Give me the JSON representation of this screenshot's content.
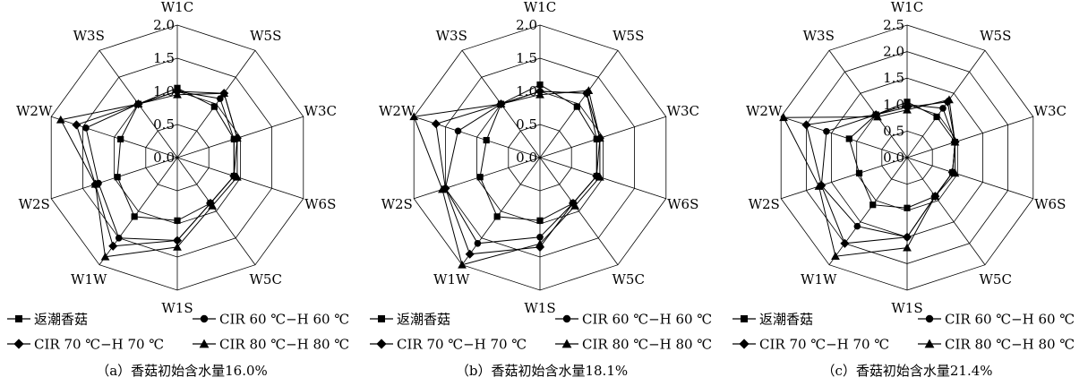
{
  "figure": {
    "axes": [
      "W1C",
      "W5S",
      "W3C",
      "W6S",
      "W5C",
      "W1S",
      "W1W",
      "W2S",
      "W2W",
      "W3S"
    ],
    "legend_labels": [
      "返潮香菇",
      "CIR 60 ℃−H 60 ℃",
      "CIR 70 ℃−H 70 ℃",
      "CIR 80 ℃−H 80 ℃"
    ],
    "marker_shapes": [
      "square",
      "circle",
      "diamond",
      "triangle"
    ],
    "line_color": "#000000"
  },
  "chart_data": [
    {
      "type": "radar",
      "caption": "（a）香菇初始含水量16.0%",
      "rmax": 2.0,
      "ticks": [
        "0.0",
        "0.5",
        "1.0",
        "1.5",
        "2.0"
      ],
      "categories": [
        "W1C",
        "W5S",
        "W3C",
        "W6S",
        "W5C",
        "W1S",
        "W1W",
        "W2S",
        "W2W",
        "W3S"
      ],
      "series": [
        {
          "name": "返潮香菇",
          "values": [
            1.05,
            0.95,
            0.9,
            0.9,
            0.85,
            0.95,
            1.1,
            0.95,
            0.9,
            1.0
          ]
        },
        {
          "name": "CIR 60 ℃−H 60 ℃",
          "values": [
            1.0,
            1.1,
            0.9,
            0.9,
            0.85,
            1.25,
            1.5,
            1.25,
            1.45,
            1.0
          ]
        },
        {
          "name": "CIR 70 ℃−H 70 ℃",
          "values": [
            1.0,
            1.2,
            0.95,
            0.9,
            0.85,
            1.25,
            1.65,
            1.3,
            1.6,
            1.0
          ]
        },
        {
          "name": "CIR 80 ℃−H 80 ℃",
          "values": [
            0.95,
            1.2,
            0.95,
            0.95,
            0.9,
            1.35,
            1.85,
            1.3,
            1.85,
            1.0
          ]
        }
      ]
    },
    {
      "type": "radar",
      "caption": "（b）香菇初始含水量18.1%",
      "rmax": 2.0,
      "ticks": [
        "0.0",
        "0.5",
        "1.0",
        "1.5",
        "2.0"
      ],
      "categories": [
        "W1C",
        "W5S",
        "W3C",
        "W6S",
        "W5C",
        "W1S",
        "W1W",
        "W2S",
        "W2W",
        "W3S"
      ],
      "series": [
        {
          "name": "返潮香菇",
          "values": [
            1.1,
            0.95,
            0.9,
            0.9,
            0.85,
            0.95,
            1.1,
            0.95,
            0.85,
            1.0
          ]
        },
        {
          "name": "CIR 60 ℃−H 60 ℃",
          "values": [
            1.0,
            1.2,
            0.9,
            0.9,
            0.85,
            1.2,
            1.6,
            1.5,
            1.3,
            1.0
          ]
        },
        {
          "name": "CIR 70 ℃−H 70 ℃",
          "values": [
            1.0,
            1.2,
            0.95,
            0.9,
            0.85,
            1.35,
            1.8,
            1.5,
            1.65,
            1.0
          ]
        },
        {
          "name": "CIR 80 ℃−H 80 ℃",
          "values": [
            0.95,
            1.25,
            0.95,
            0.95,
            0.9,
            1.3,
            2.0,
            1.55,
            2.0,
            1.0
          ]
        }
      ]
    },
    {
      "type": "radar",
      "caption": "（c）香菇初始含水量21.4%",
      "rmax": 2.5,
      "ticks": [
        "0.0",
        "0.5",
        "1.0",
        "1.5",
        "2.0",
        "2.5"
      ],
      "categories": [
        "W1C",
        "W5S",
        "W3C",
        "W6S",
        "W5C",
        "W1S",
        "W1W",
        "W2S",
        "W2W",
        "W3S"
      ],
      "series": [
        {
          "name": "返潮香菇",
          "values": [
            1.05,
            0.95,
            0.95,
            0.9,
            0.9,
            0.95,
            1.1,
            0.95,
            1.15,
            1.0
          ]
        },
        {
          "name": "CIR 60 ℃−H 60 ℃",
          "values": [
            1.0,
            1.15,
            0.95,
            0.9,
            0.9,
            1.5,
            1.6,
            1.7,
            1.6,
            1.0
          ]
        },
        {
          "name": "CIR 70 ℃−H 70 ℃",
          "values": [
            0.95,
            1.3,
            0.95,
            0.9,
            0.9,
            1.5,
            2.0,
            1.7,
            2.0,
            1.0
          ]
        },
        {
          "name": "CIR 80 ℃−H 80 ℃",
          "values": [
            0.9,
            1.35,
            0.95,
            0.95,
            0.9,
            1.7,
            2.3,
            1.75,
            2.45,
            0.95
          ]
        }
      ]
    }
  ]
}
